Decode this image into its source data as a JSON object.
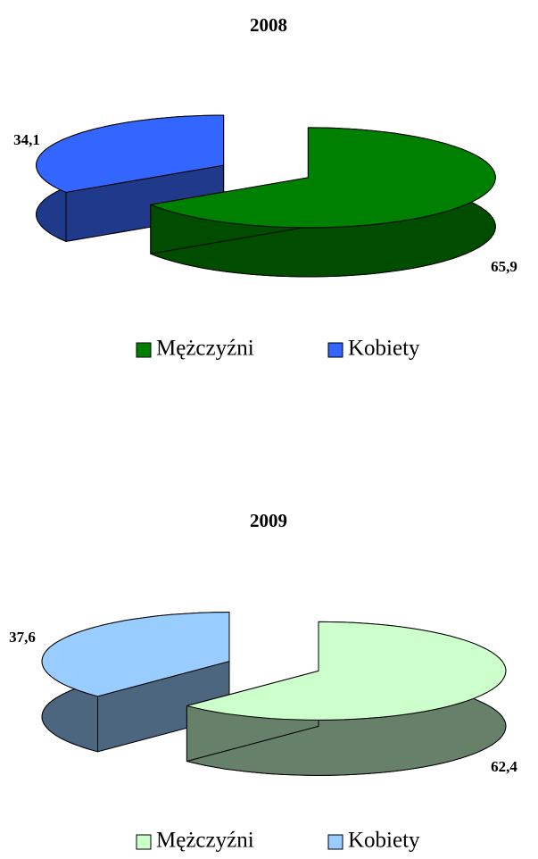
{
  "chart_data": [
    {
      "type": "pie",
      "title": "2008",
      "categories": [
        "Mężczyźni",
        "Kobiety"
      ],
      "values": [
        65.9,
        34.1
      ],
      "value_labels": [
        "65,9",
        "34,1"
      ],
      "colors": [
        "#008000",
        "#3366ff"
      ],
      "side_colors": [
        "#004d00",
        "#1f3a8a"
      ],
      "legend": "bottom"
    },
    {
      "type": "pie",
      "title": "2009",
      "categories": [
        "Mężczyźni",
        "Kobiety"
      ],
      "values": [
        62.4,
        37.6
      ],
      "value_labels": [
        "62,4",
        "37,6"
      ],
      "colors": [
        "#ccffcc",
        "#99ccff"
      ],
      "side_colors": [
        "#66806a",
        "#4d6680"
      ],
      "legend": "bottom"
    }
  ]
}
